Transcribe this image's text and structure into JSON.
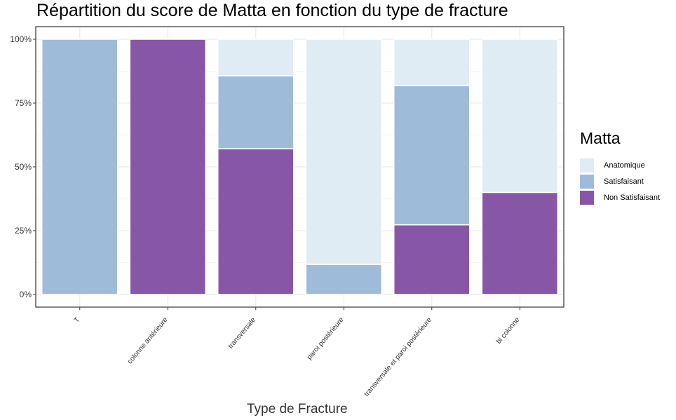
{
  "chart_data": {
    "type": "bar",
    "stacked": true,
    "percent": true,
    "title": "Répartition du score de Matta en fonction du type de fracture",
    "xlabel": "Type de Fracture",
    "ylabel": "",
    "ylim": [
      0,
      1
    ],
    "yticks": [
      "0%",
      "25%",
      "50%",
      "75%",
      "100%"
    ],
    "grid": true,
    "legend_position": "right",
    "legend_title": "Matta",
    "categories": [
      "T",
      "colonne antérieure",
      "transversale",
      "paroi postérieure",
      "transversale et paroi postérieure",
      "bi colonne"
    ],
    "series": [
      {
        "name": "Non Satisfaisant",
        "color": "#8856a7",
        "values": [
          0,
          1.0,
          0.571,
          0,
          0.273,
          0.4
        ]
      },
      {
        "name": "Satisfaisant",
        "color": "#9ebcda",
        "values": [
          1.0,
          0,
          0.286,
          0.118,
          0.545,
          0
        ]
      },
      {
        "name": "Anatomique",
        "color": "#e0ecf4",
        "values": [
          0,
          0,
          0.143,
          0.882,
          0.182,
          0.6
        ]
      }
    ],
    "legend_order": [
      "Anatomique",
      "Satisfaisant",
      "Non Satisfaisant"
    ]
  }
}
